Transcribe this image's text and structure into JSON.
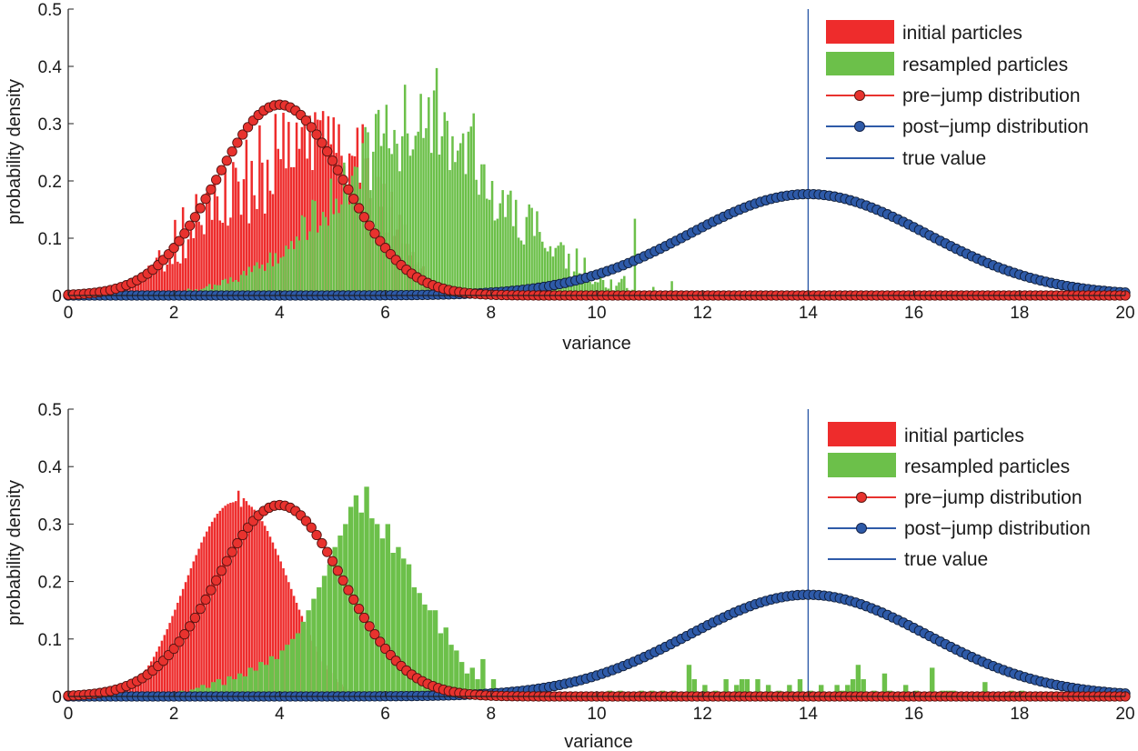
{
  "chart_data": [
    {
      "type": "bar",
      "title": "",
      "xlabel": "variance",
      "ylabel": "probability density",
      "xlim": [
        0,
        20
      ],
      "ylim": [
        0,
        0.5
      ],
      "xticks": [
        "0",
        "2",
        "4",
        "6",
        "8",
        "10",
        "12",
        "14",
        "16",
        "18",
        "20"
      ],
      "yticks": [
        "0",
        "0.1",
        "0.2",
        "0.3",
        "0.4",
        "0.5"
      ],
      "legend_position": "top-right",
      "legend": {
        "initial": "initial particles",
        "resampled": "resampled particles",
        "pre": "pre−jump distribution",
        "post": "post−jump distribution",
        "true": "true value"
      },
      "series": [
        {
          "name": "initial particles",
          "kind": "bar",
          "color": "#ee2c2c",
          "bin_start": 0.7,
          "bin_width": 0.05,
          "values": [
            0.001,
            0.002,
            0.003,
            0.005,
            0.006,
            0.008,
            0.01,
            0.01,
            0.012,
            0.015,
            0.018,
            0.02,
            0.02,
            0.026,
            0.034,
            0.038,
            0.052,
            0.04,
            0.037,
            0.066,
            0.079,
            0.054,
            0.042,
            0.054,
            0.086,
            0.055,
            0.132,
            0.059,
            0.056,
            0.154,
            0.065,
            0.098,
            0.116,
            0.1,
            0.177,
            0.129,
            0.123,
            0.107,
            0.18,
            0.179,
            0.132,
            0.198,
            0.173,
            0.131,
            0.127,
            0.217,
            0.122,
            0.136,
            0.233,
            0.223,
            0.199,
            0.141,
            0.203,
            0.272,
            0.126,
            0.235,
            0.175,
            0.151,
            0.297,
            0.232,
            0.143,
            0.237,
            0.183,
            0.177,
            0.317,
            0.256,
            0.238,
            0.319,
            0.222,
            0.303,
            0.224,
            0.224,
            0.302,
            0.256,
            0.294,
            0.316,
            0.239,
            0.314,
            0.219,
            0.32,
            0.307,
            0.306,
            0.322,
            0.266,
            0.313,
            0.264,
            0.311,
            0.249,
            0.299,
            0.244,
            0.226,
            0.189,
            0.248,
            0.244,
            0.243,
            0.293,
            0.197,
            0.299,
            0.239,
            0.24,
            0.17,
            0.122,
            0.219,
            0.207,
            0.155,
            0.195,
            0.11,
            0.154,
            0.181,
            0.104,
            0.115,
            0.141,
            0.091,
            0.124,
            0.09,
            0.07,
            0.076,
            0.054,
            0.058,
            0.047,
            0.051,
            0.029,
            0.031,
            0.029,
            0.021,
            0.025,
            0.017,
            0.015,
            0.014,
            0.01,
            0.008,
            0.007,
            0.006,
            0.005,
            0.003,
            0.002,
            0.001,
            0.001,
            0.0,
            0.0
          ]
        },
        {
          "name": "resampled particles",
          "kind": "bar",
          "color": "#6cc04a",
          "bin_start": 1.9,
          "bin_width": 0.05,
          "values": [
            0.0,
            0.0,
            0.002,
            0.003,
            0.005,
            0.008,
            0.008,
            0.012,
            0.01,
            0.006,
            0.011,
            0.007,
            0.011,
            0.013,
            0.016,
            0.02,
            0.011,
            0.019,
            0.018,
            0.018,
            0.027,
            0.029,
            0.021,
            0.032,
            0.024,
            0.027,
            0.024,
            0.036,
            0.043,
            0.035,
            0.05,
            0.041,
            0.052,
            0.058,
            0.047,
            0.054,
            0.043,
            0.057,
            0.075,
            0.051,
            0.074,
            0.056,
            0.066,
            0.068,
            0.087,
            0.081,
            0.095,
            0.081,
            0.103,
            0.096,
            0.14,
            0.137,
            0.097,
            0.112,
            0.167,
            0.165,
            0.11,
            0.122,
            0.146,
            0.137,
            0.122,
            0.204,
            0.142,
            0.169,
            0.144,
            0.159,
            0.232,
            0.179,
            0.159,
            0.209,
            0.225,
            0.224,
            0.186,
            0.266,
            0.294,
            0.285,
            0.184,
            0.251,
            0.317,
            0.324,
            0.261,
            0.283,
            0.333,
            0.257,
            0.247,
            0.289,
            0.265,
            0.217,
            0.278,
            0.368,
            0.283,
            0.244,
            0.255,
            0.279,
            0.286,
            0.352,
            0.275,
            0.292,
            0.346,
            0.249,
            0.358,
            0.397,
            0.246,
            0.278,
            0.32,
            0.305,
            0.219,
            0.278,
            0.233,
            0.253,
            0.266,
            0.283,
            0.212,
            0.286,
            0.295,
            0.318,
            0.202,
            0.176,
            0.229,
            0.229,
            0.169,
            0.167,
            0.2,
            0.131,
            0.134,
            0.161,
            0.184,
            0.137,
            0.176,
            0.183,
            0.121,
            0.167,
            0.101,
            0.096,
            0.089,
            0.137,
            0.159,
            0.153,
            0.104,
            0.147,
            0.111,
            0.094,
            0.083,
            0.077,
            0.086,
            0.068,
            0.083,
            0.087,
            0.093,
            0.088,
            0.047,
            0.073,
            0.031,
            0.042,
            0.082,
            0.039,
            0.034,
            0.066,
            0.032,
            0.024,
            0.02,
            0.024,
            0.023,
            0.031,
            0.027,
            0.014,
            0.012,
            0.028,
            0.009,
            0.017,
            0.023,
            0.029,
            0.034,
            0.013,
            0.005,
            0.01,
            0.134,
            0.0,
            0.005,
            0.0,
            0.0,
            0.0,
            0.0,
            0.015,
            0.0,
            0.0,
            0.0,
            0.0,
            0.0,
            0.0,
            0.025,
            0.0,
            0.0,
            0.0,
            0.005
          ]
        },
        {
          "name": "pre−jump distribution",
          "kind": "line-markers",
          "color": "#e8322e",
          "distribution": "normal",
          "mean": 4.0,
          "std": 1.2,
          "x_range": [
            0,
            20
          ],
          "marker_step": 0.1,
          "peak": 0.333
        },
        {
          "name": "post−jump distribution",
          "kind": "line-markers",
          "color": "#2e5aa8",
          "distribution": "normal",
          "mean": 14.0,
          "std": 2.25,
          "x_range": [
            0,
            20
          ],
          "marker_step": 0.1,
          "peak": 0.177
        },
        {
          "name": "true value",
          "kind": "vline",
          "color": "#2e5aa8",
          "x": 14
        }
      ]
    },
    {
      "type": "bar",
      "title": "",
      "xlabel": "variance",
      "ylabel": "probability density",
      "xlim": [
        0,
        20
      ],
      "ylim": [
        0,
        0.5
      ],
      "xticks": [
        "0",
        "2",
        "4",
        "6",
        "8",
        "10",
        "12",
        "14",
        "16",
        "18",
        "20"
      ],
      "yticks": [
        "0",
        "0.1",
        "0.2",
        "0.3",
        "0.4",
        "0.5"
      ],
      "legend_position": "top-right",
      "legend": {
        "initial": "initial particles",
        "resampled": "resampled particles",
        "pre": "pre−jump distribution",
        "post": "post−jump distribution",
        "true": "true value"
      },
      "series": [
        {
          "name": "initial particles",
          "kind": "bar",
          "color": "#ee2c2c",
          "bin_start": 0.7,
          "bin_width": 0.05,
          "values": [
            0.001,
            0.002,
            0.003,
            0.004,
            0.006,
            0.007,
            0.009,
            0.012,
            0.014,
            0.017,
            0.021,
            0.025,
            0.03,
            0.035,
            0.041,
            0.047,
            0.054,
            0.061,
            0.069,
            0.078,
            0.087,
            0.097,
            0.107,
            0.117,
            0.128,
            0.14,
            0.151,
            0.163,
            0.175,
            0.187,
            0.199,
            0.211,
            0.223,
            0.235,
            0.246,
            0.257,
            0.268,
            0.278,
            0.287,
            0.296,
            0.304,
            0.311,
            0.318,
            0.323,
            0.328,
            0.332,
            0.335,
            0.337,
            0.338,
            0.34,
            0.358,
            0.33,
            0.345,
            0.34,
            0.333,
            0.33,
            0.325,
            0.319,
            0.313,
            0.305,
            0.297,
            0.288,
            0.278,
            0.268,
            0.257,
            0.246,
            0.235,
            0.223,
            0.211,
            0.199,
            0.187,
            0.175,
            0.163,
            0.151,
            0.14,
            0.128,
            0.117,
            0.107,
            0.097,
            0.087,
            0.078,
            0.069,
            0.061,
            0.054,
            0.047,
            0.041,
            0.035,
            0.03,
            0.025,
            0.021,
            0.017,
            0.014,
            0.012,
            0.009,
            0.007,
            0.006,
            0.004,
            0.003,
            0.002,
            0.001,
            0.001,
            0.0
          ]
        },
        {
          "name": "resampled particles",
          "kind": "bar",
          "color": "#6cc04a",
          "bin_width": 0.1,
          "x": [
            2.0,
            2.1,
            2.2,
            2.3,
            2.4,
            2.5,
            2.6,
            2.7,
            2.8,
            2.9,
            3.0,
            3.1,
            3.2,
            3.3,
            3.4,
            3.5,
            3.6,
            3.7,
            3.8,
            3.9,
            4.0,
            4.1,
            4.2,
            4.3,
            4.4,
            4.5,
            4.6,
            4.7,
            4.8,
            4.9,
            5.0,
            5.1,
            5.2,
            5.3,
            5.4,
            5.5,
            5.6,
            5.7,
            5.8,
            5.9,
            6.0,
            6.1,
            6.2,
            6.3,
            6.4,
            6.5,
            6.6,
            6.7,
            6.8,
            6.9,
            7.0,
            7.1,
            7.2,
            7.3,
            7.4,
            7.5,
            7.6,
            7.7,
            7.8,
            8.0,
            10.2,
            10.4,
            10.8,
            11.0,
            11.2,
            11.4,
            11.7,
            11.8,
            12.0,
            12.2,
            12.4,
            12.6,
            12.7,
            12.8,
            13.0,
            13.2,
            13.4,
            13.6,
            13.8,
            14.0,
            14.2,
            14.5,
            14.6,
            14.7,
            14.8,
            14.9,
            15.0,
            15.2,
            15.4,
            15.5,
            15.8,
            16.0,
            16.3,
            16.5,
            16.6,
            16.7,
            17.3,
            17.8,
            18.0
          ],
          "values": [
            0.005,
            0.01,
            0.008,
            0.012,
            0.015,
            0.02,
            0.015,
            0.025,
            0.03,
            0.02,
            0.035,
            0.03,
            0.04,
            0.035,
            0.05,
            0.045,
            0.06,
            0.055,
            0.07,
            0.065,
            0.08,
            0.09,
            0.1,
            0.11,
            0.13,
            0.15,
            0.17,
            0.19,
            0.21,
            0.23,
            0.26,
            0.28,
            0.3,
            0.33,
            0.35,
            0.32,
            0.365,
            0.31,
            0.3,
            0.275,
            0.3,
            0.25,
            0.26,
            0.24,
            0.23,
            0.19,
            0.18,
            0.16,
            0.15,
            0.15,
            0.11,
            0.12,
            0.09,
            0.08,
            0.06,
            0.04,
            0.05,
            0.03,
            0.065,
            0.03,
            0.01,
            0.01,
            0.01,
            0.01,
            0.01,
            0.01,
            0.055,
            0.03,
            0.02,
            0.01,
            0.03,
            0.02,
            0.03,
            0.03,
            0.03,
            0.02,
            0.01,
            0.02,
            0.03,
            0.01,
            0.02,
            0.02,
            0.01,
            0.02,
            0.03,
            0.055,
            0.03,
            0.01,
            0.04,
            0.01,
            0.02,
            0.01,
            0.05,
            0.01,
            0.01,
            0.01,
            0.025,
            0.01,
            0.01
          ]
        },
        {
          "name": "pre−jump distribution",
          "kind": "line-markers",
          "color": "#e8322e",
          "distribution": "normal",
          "mean": 4.0,
          "std": 1.2,
          "x_range": [
            0,
            20
          ],
          "marker_step": 0.1,
          "peak": 0.333
        },
        {
          "name": "post−jump distribution",
          "kind": "line-markers",
          "color": "#2e5aa8",
          "distribution": "normal",
          "mean": 14.0,
          "std": 2.25,
          "x_range": [
            0,
            20
          ],
          "marker_step": 0.1,
          "peak": 0.177
        },
        {
          "name": "true value",
          "kind": "vline",
          "color": "#2e5aa8",
          "x": 14
        }
      ]
    }
  ]
}
